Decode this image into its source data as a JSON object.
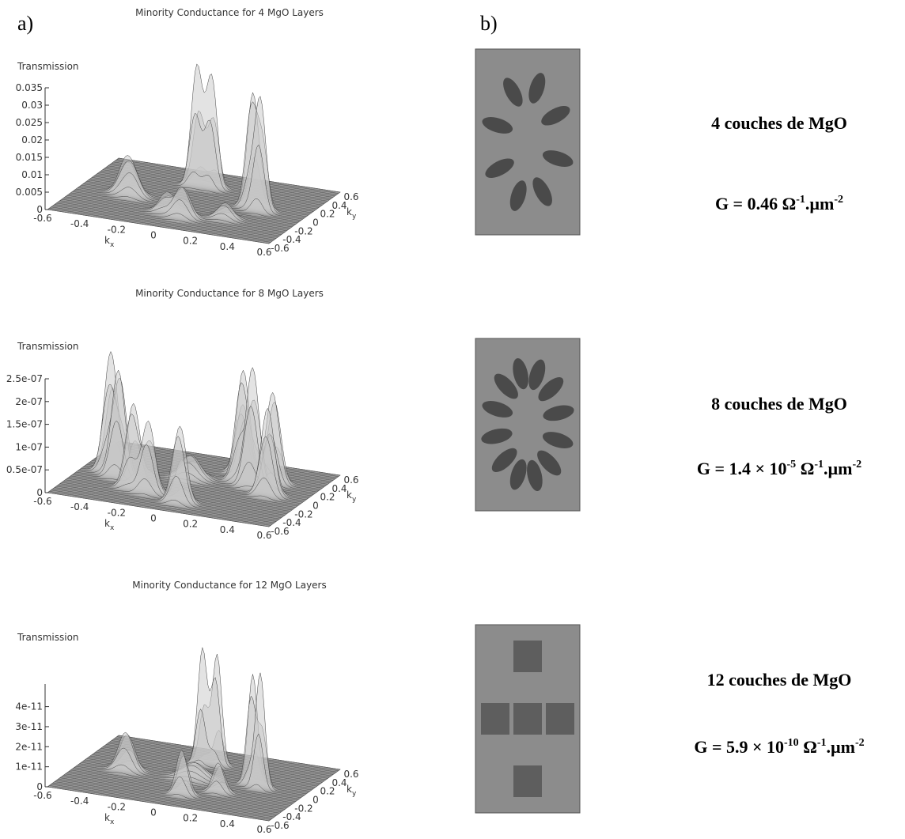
{
  "labels": {
    "a": "a)",
    "b": "b)"
  },
  "plots": [
    {
      "title": "Minority Conductance for 4 MgO Layers",
      "zlabel": "Transmission",
      "zticks": [
        "0",
        "0.005",
        "0.01",
        "0.015",
        "0.02",
        "0.025",
        "0.03",
        "0.035"
      ],
      "xlabel": "k",
      "xsub": "x",
      "ylabel": "k",
      "ysub": "y",
      "xticks": [
        "-0.6",
        "-0.4",
        "-0.2",
        "0",
        "0.2",
        "0.4",
        "0.6"
      ],
      "yticks": [
        "-0.6",
        "-0.4",
        "-0.2",
        "0",
        "0.2",
        "0.4",
        "0.6"
      ]
    },
    {
      "title": "Minority Conductance for 8 MgO Layers",
      "zlabel": "Transmission",
      "zticks": [
        "0",
        "0.5e-07",
        "1e-07",
        "1.5e-07",
        "2e-07",
        "2.5e-07"
      ],
      "xlabel": "k",
      "xsub": "x",
      "ylabel": "k",
      "ysub": "y",
      "xticks": [
        "-0.6",
        "-0.4",
        "-0.2",
        "0",
        "0.2",
        "0.4",
        "0.6"
      ],
      "yticks": [
        "-0.6",
        "-0.4",
        "-0.2",
        "0",
        "0.2",
        "0.4",
        "0.6"
      ]
    },
    {
      "title": "Minority Conductance for 12 MgO Layers",
      "zlabel": "Transmission",
      "zticks": [
        "0",
        "1e-11",
        "2e-11",
        "3e-11",
        "4e-11"
      ],
      "xlabel": "k",
      "xsub": "x",
      "ylabel": "k",
      "ysub": "y",
      "xticks": [
        "-0.6",
        "-0.4",
        "-0.2",
        "0",
        "0.2",
        "0.4",
        "0.6"
      ],
      "yticks": [
        "-0.6",
        "-0.4",
        "-0.2",
        "0",
        "0.2",
        "0.4",
        "0.6"
      ]
    }
  ],
  "maps": [
    {
      "caption": "4 couches de MgO",
      "conductance": [
        {
          "t": "G = 0.46 Ω",
          "sup": false
        },
        {
          "t": "-1",
          "sup": true
        },
        {
          "t": ".µm",
          "sup": false
        },
        {
          "t": "-2",
          "sup": true
        }
      ]
    },
    {
      "caption": "8 couches de MgO",
      "conductance": [
        {
          "t": "G = 1.4 × 10",
          "sup": false
        },
        {
          "t": "-5",
          "sup": true
        },
        {
          "t": " Ω",
          "sup": false
        },
        {
          "t": "-1",
          "sup": true
        },
        {
          "t": ".µm",
          "sup": false
        },
        {
          "t": "-2",
          "sup": true
        }
      ]
    },
    {
      "caption": "12 couches de MgO",
      "conductance": [
        {
          "t": "G = 5.9 × 10",
          "sup": false
        },
        {
          "t": "-10",
          "sup": true
        },
        {
          "t": " Ω",
          "sup": false
        },
        {
          "t": "-1",
          "sup": true
        },
        {
          "t": ".µm",
          "sup": false
        },
        {
          "t": "-2",
          "sup": true
        }
      ]
    }
  ]
}
